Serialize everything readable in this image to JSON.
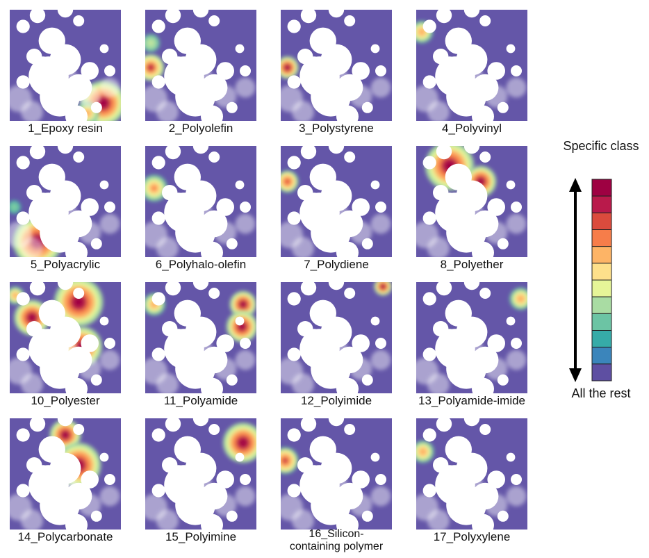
{
  "chart_data": {
    "type": "heatmap",
    "description_kind": "self-organizing-map class density panels",
    "colors": {
      "background": "#6456a8",
      "colormap": [
        "#5e4fa2",
        "#3b85bb",
        "#36aba8",
        "#6cc4a4",
        "#a9dca3",
        "#e6f598",
        "#fee08b",
        "#fdb466",
        "#f67d4a",
        "#db4b3d",
        "#b91a4b",
        "#9e0142"
      ]
    },
    "panels": [
      {
        "label": "1_Epoxy resin",
        "hotspots": [
          {
            "cx": 0.84,
            "cy": 0.84,
            "r": 0.2,
            "intensity": 1.0
          },
          {
            "cx": 0.7,
            "cy": 0.93,
            "r": 0.1,
            "intensity": 0.6
          }
        ]
      },
      {
        "label": "2_Polyolefin",
        "hotspots": [
          {
            "cx": 0.05,
            "cy": 0.52,
            "r": 0.12,
            "intensity": 0.9
          },
          {
            "cx": 0.05,
            "cy": 0.3,
            "r": 0.08,
            "intensity": 0.3
          }
        ]
      },
      {
        "label": "3_Polystyrene",
        "hotspots": [
          {
            "cx": 0.06,
            "cy": 0.52,
            "r": 0.1,
            "intensity": 1.0
          }
        ]
      },
      {
        "label": "4_Polyvinyl",
        "hotspots": [
          {
            "cx": 0.05,
            "cy": 0.2,
            "r": 0.1,
            "intensity": 0.6
          }
        ]
      },
      {
        "label": "5_Polyacrylic",
        "hotspots": [
          {
            "cx": 0.25,
            "cy": 0.86,
            "r": 0.22,
            "intensity": 1.0
          },
          {
            "cx": 0.04,
            "cy": 0.55,
            "r": 0.06,
            "intensity": 0.15
          }
        ]
      },
      {
        "label": "6_Polyhalo-olefin",
        "hotspots": [
          {
            "cx": 0.08,
            "cy": 0.38,
            "r": 0.12,
            "intensity": 0.7
          }
        ]
      },
      {
        "label": "7_Polydiene",
        "hotspots": [
          {
            "cx": 0.06,
            "cy": 0.32,
            "r": 0.1,
            "intensity": 0.8
          }
        ]
      },
      {
        "label": "8_Polyether",
        "hotspots": [
          {
            "cx": 0.3,
            "cy": 0.18,
            "r": 0.22,
            "intensity": 1.0
          },
          {
            "cx": 0.58,
            "cy": 0.32,
            "r": 0.14,
            "intensity": 1.0
          }
        ]
      },
      {
        "label": "10_Polyester",
        "hotspots": [
          {
            "cx": 0.2,
            "cy": 0.32,
            "r": 0.16,
            "intensity": 1.0
          },
          {
            "cx": 0.62,
            "cy": 0.18,
            "r": 0.22,
            "intensity": 1.0
          },
          {
            "cx": 0.65,
            "cy": 0.58,
            "r": 0.18,
            "intensity": 1.0
          },
          {
            "cx": 0.05,
            "cy": 0.12,
            "r": 0.08,
            "intensity": 0.6
          }
        ]
      },
      {
        "label": "11_Polyamide",
        "hotspots": [
          {
            "cx": 0.88,
            "cy": 0.2,
            "r": 0.12,
            "intensity": 1.0
          },
          {
            "cx": 0.87,
            "cy": 0.4,
            "r": 0.14,
            "intensity": 1.0
          },
          {
            "cx": 0.08,
            "cy": 0.2,
            "r": 0.1,
            "intensity": 0.6
          }
        ]
      },
      {
        "label": "12_Polyimide",
        "hotspots": [
          {
            "cx": 0.92,
            "cy": 0.04,
            "r": 0.08,
            "intensity": 1.0
          }
        ]
      },
      {
        "label": "13_Polyamide-imide",
        "hotspots": [
          {
            "cx": 0.94,
            "cy": 0.15,
            "r": 0.1,
            "intensity": 0.6
          }
        ]
      },
      {
        "label": "14_Polycarbonate",
        "hotspots": [
          {
            "cx": 0.5,
            "cy": 0.15,
            "r": 0.14,
            "intensity": 1.0
          },
          {
            "cx": 0.62,
            "cy": 0.42,
            "r": 0.2,
            "intensity": 1.0
          }
        ]
      },
      {
        "label": "15_Polyimine",
        "hotspots": [
          {
            "cx": 0.88,
            "cy": 0.22,
            "r": 0.18,
            "intensity": 1.0
          }
        ]
      },
      {
        "label": "16_Silicon-\ncontaining polymer",
        "hotspots": [
          {
            "cx": 0.04,
            "cy": 0.38,
            "r": 0.12,
            "intensity": 0.85
          }
        ]
      },
      {
        "label": "17_Polyxylene",
        "hotspots": [
          {
            "cx": 0.06,
            "cy": 0.3,
            "r": 0.1,
            "intensity": 0.6
          }
        ]
      }
    ],
    "legend": {
      "top_label": "Specific class",
      "bottom_label": "All the rest",
      "steps": 12
    }
  }
}
